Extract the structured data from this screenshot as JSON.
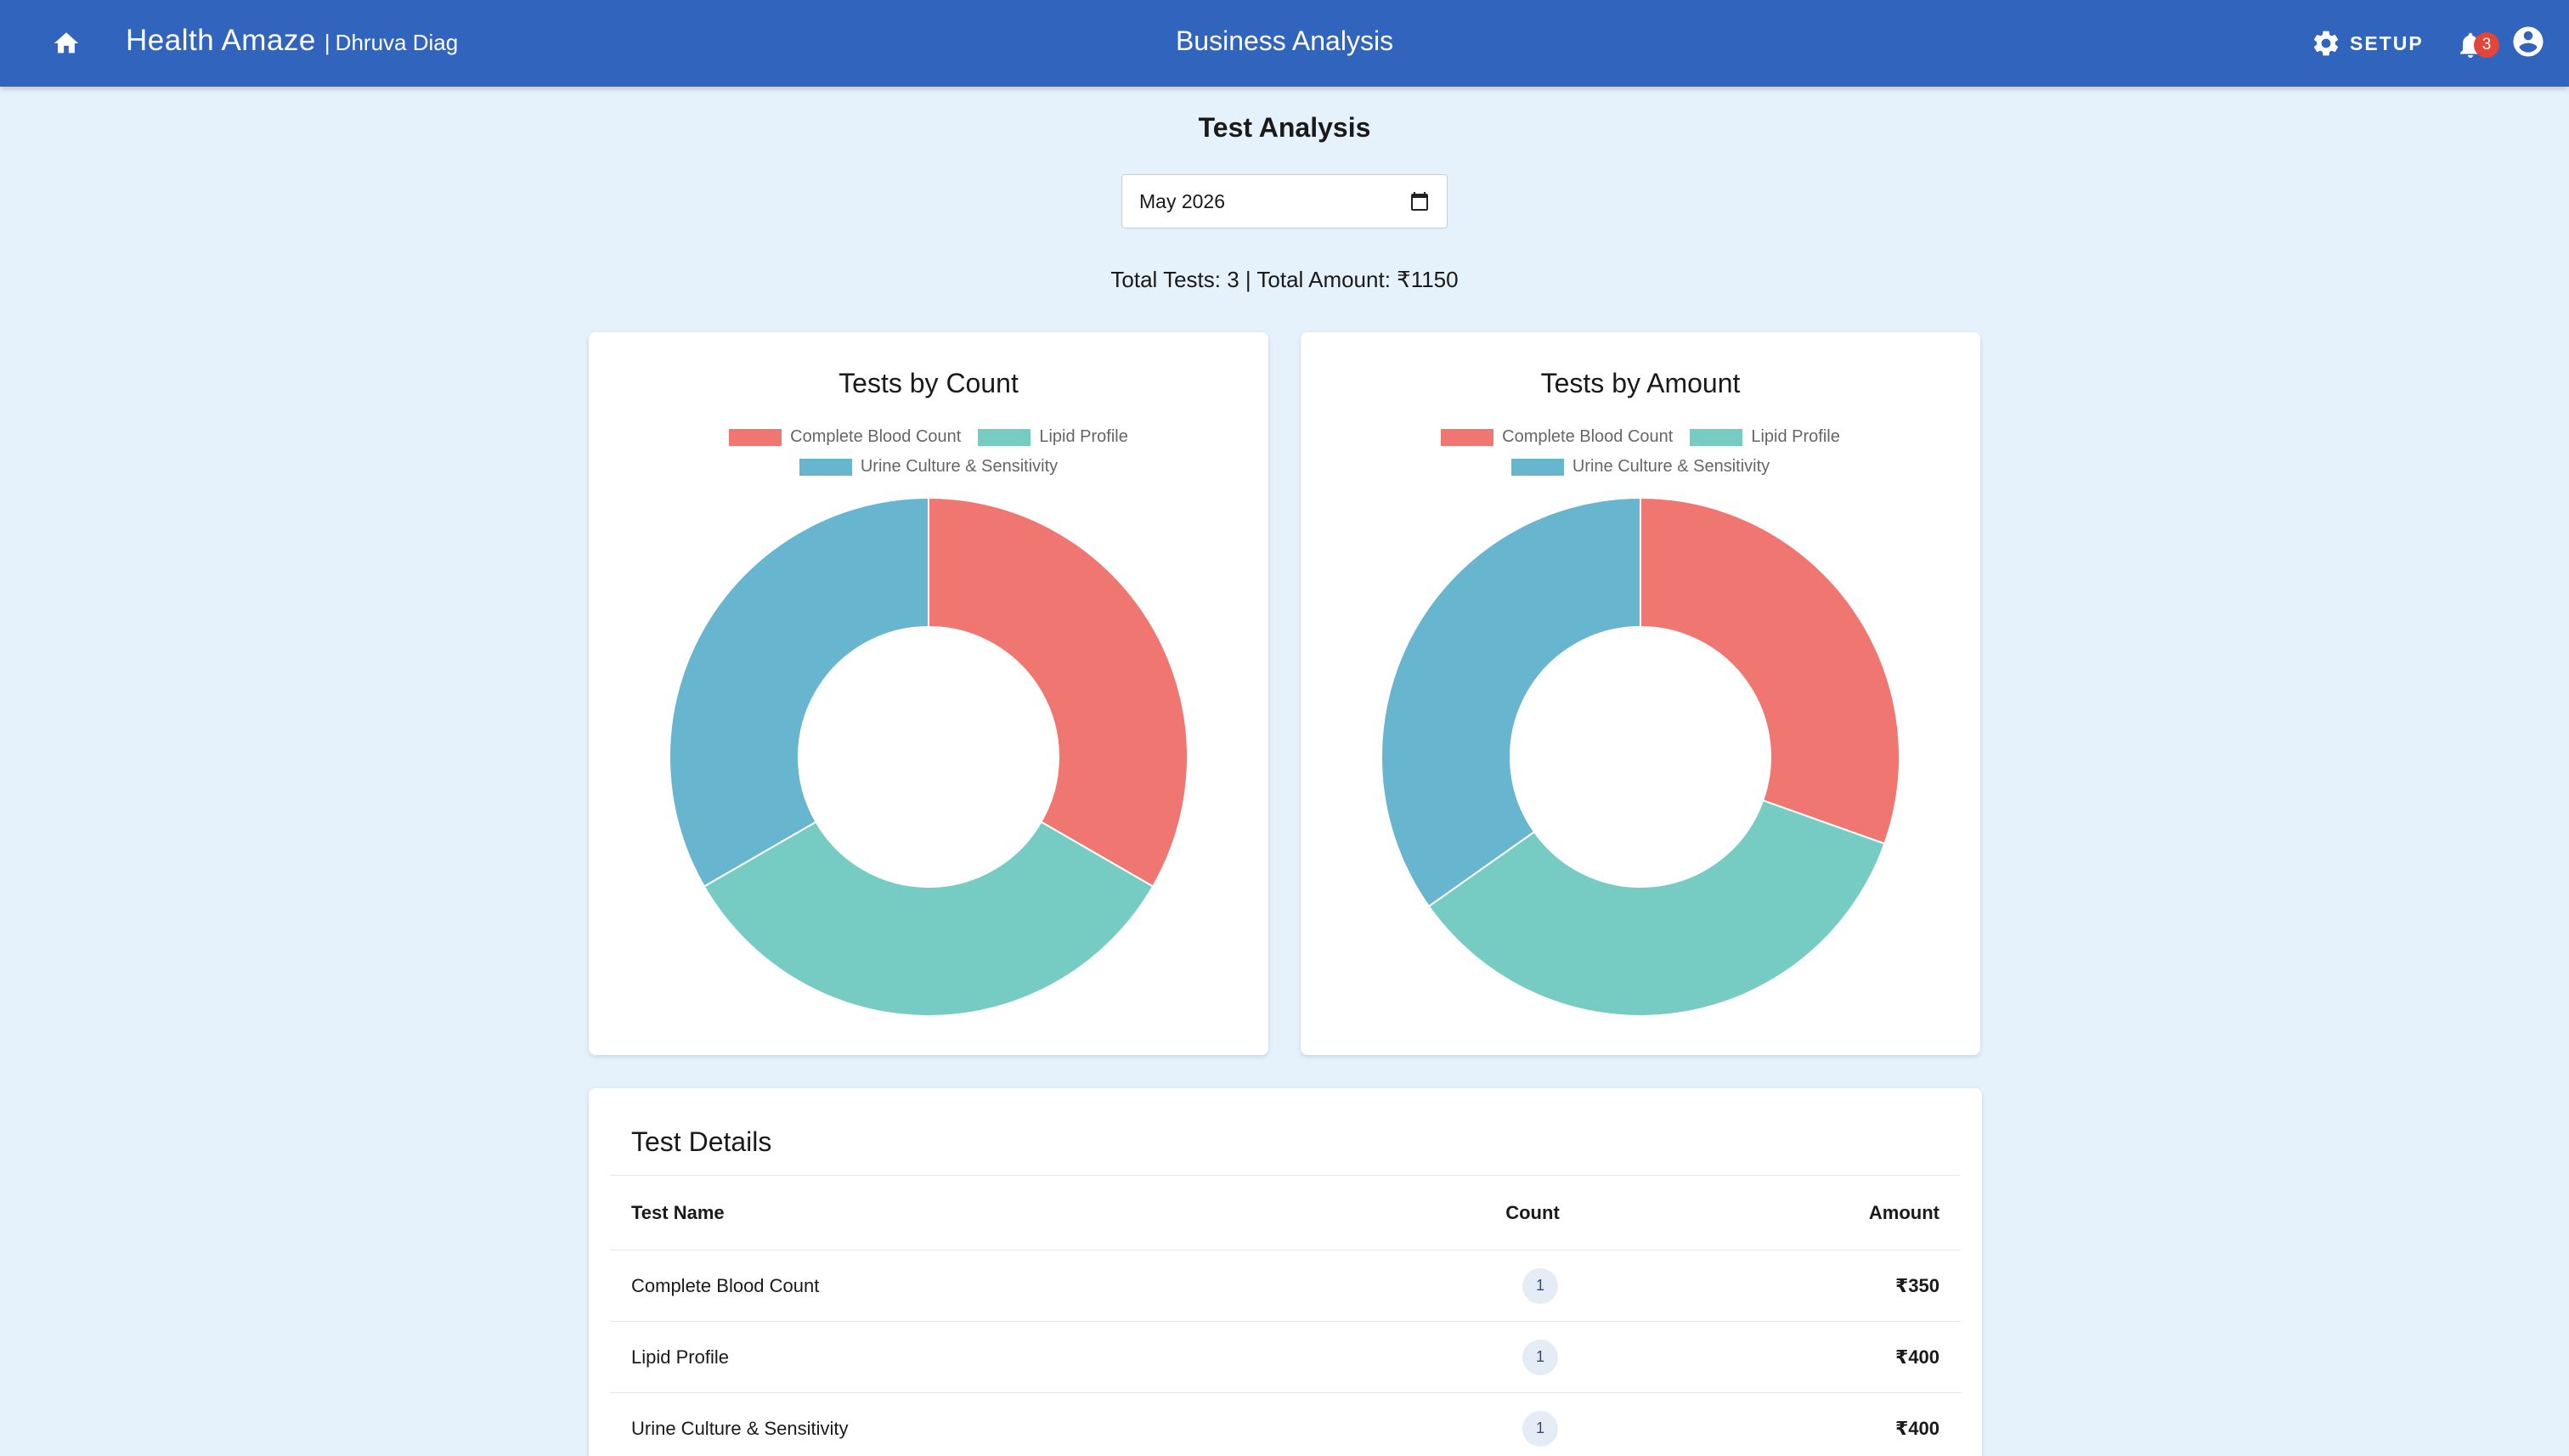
{
  "header": {
    "brand_name": "Health Amaze",
    "brand_separator": "|",
    "org_name": "Dhruva Diag",
    "page_title": "Business Analysis",
    "setup_label": "SETUP",
    "notification_count": "3",
    "icons": {
      "home": "home-icon",
      "setup": "gear-icon",
      "notifications": "bell-icon",
      "account": "account-circle-icon"
    }
  },
  "analysis": {
    "title": "Test Analysis",
    "month_value": "May 2026",
    "summary": "Total Tests: 3 | Total Amount: ₹1150"
  },
  "colors": {
    "header": "#3164bd",
    "cbc": "#ef7671",
    "lipid": "#76cbc2",
    "urine": "#67b5cf"
  },
  "chart_data": [
    {
      "type": "pie",
      "title": "Tests by Count",
      "donut": true,
      "legend_position": "top",
      "categories": [
        "Complete Blood Count",
        "Lipid Profile",
        "Urine Culture & Sensitivity"
      ],
      "values": [
        1,
        1,
        1
      ],
      "colors": [
        "#ef7671",
        "#76cbc2",
        "#67b5cf"
      ]
    },
    {
      "type": "pie",
      "title": "Tests by Amount",
      "donut": true,
      "legend_position": "top",
      "categories": [
        "Complete Blood Count",
        "Lipid Profile",
        "Urine Culture & Sensitivity"
      ],
      "values": [
        350,
        400,
        400
      ],
      "colors": [
        "#ef7671",
        "#76cbc2",
        "#67b5cf"
      ]
    }
  ],
  "table": {
    "title": "Test Details",
    "columns": [
      "Test Name",
      "Count",
      "Amount"
    ],
    "rows": [
      {
        "name": "Complete Blood Count",
        "count": "1",
        "amount": "₹350"
      },
      {
        "name": "Lipid Profile",
        "count": "1",
        "amount": "₹400"
      },
      {
        "name": "Urine Culture & Sensitivity",
        "count": "1",
        "amount": "₹400"
      }
    ]
  }
}
